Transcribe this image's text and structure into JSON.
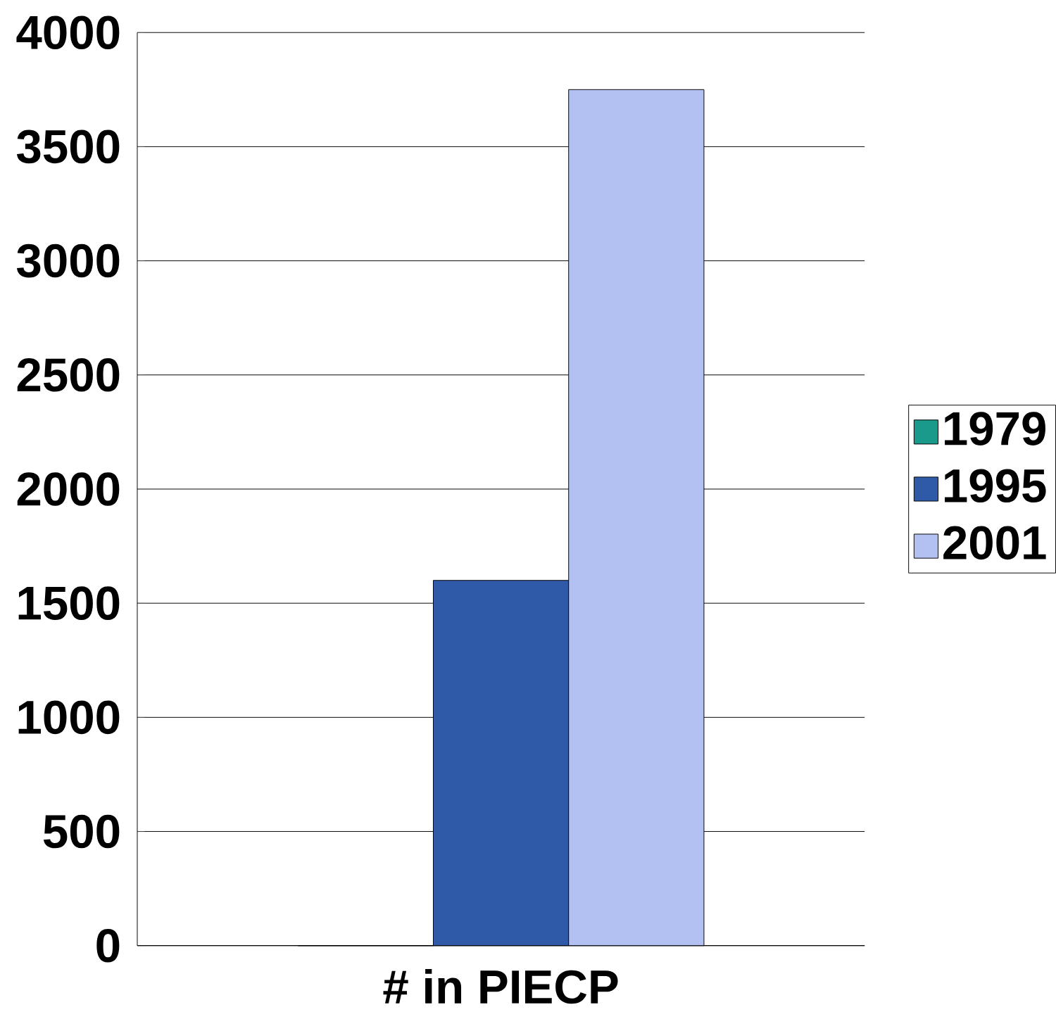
{
  "chart_data": {
    "type": "bar",
    "categories": [
      "# in PIECP"
    ],
    "series": [
      {
        "name": "1979",
        "color": "#1a9a8a",
        "values": [
          0
        ]
      },
      {
        "name": "1995",
        "color": "#2f5aa8",
        "values": [
          1600
        ]
      },
      {
        "name": "2001",
        "color": "#b3c1f2",
        "values": [
          3750
        ]
      }
    ],
    "ylim": [
      0,
      4000
    ],
    "yticks": [
      0,
      500,
      1000,
      1500,
      2000,
      2500,
      3000,
      3500,
      4000
    ],
    "grid": "y",
    "legend": "right"
  }
}
